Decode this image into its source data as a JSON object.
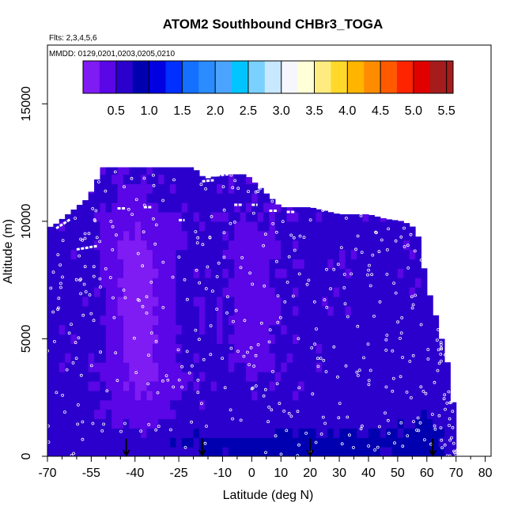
{
  "chart_data": {
    "type": "heatmap",
    "title": "ATOM2 Southbound CHBr3_TOGA",
    "flights_note": "Flts: 2,3,4,5,6",
    "dates_note": "MMDD: 0129,0201,0203,0205,0210",
    "xlabel": "Latitude (deg N)",
    "ylabel": "Altitude (m)",
    "xlim": [
      -70,
      82
    ],
    "ylim": [
      0,
      17500
    ],
    "x_ticks": [
      -70,
      -55,
      -40,
      -25,
      -10,
      0,
      10,
      20,
      30,
      40,
      50,
      60,
      70,
      80
    ],
    "x_tick_labels": [
      "-70",
      "-55",
      "-40",
      "-25",
      "-10",
      "0",
      "10",
      "20",
      "30",
      "40",
      "50",
      "60",
      "70",
      "80"
    ],
    "x_minor_ticks": [
      -65,
      -60,
      -50,
      -45,
      -35,
      -30,
      -20,
      -15,
      -5,
      5,
      15,
      25,
      35,
      45,
      55,
      65,
      75
    ],
    "y_ticks": [
      0,
      5000,
      10000,
      15000
    ],
    "y_tick_labels": [
      "0",
      "5000",
      "10000",
      "15000"
    ],
    "colorbar": {
      "min": 0,
      "max": 5.6,
      "bins": [
        0.25,
        0.5,
        0.75,
        1.0,
        1.25,
        1.5,
        1.75,
        2.0,
        2.25,
        2.5,
        2.75,
        3.0,
        3.25,
        3.5,
        3.75,
        4.0,
        4.25,
        4.5,
        4.75,
        5.0,
        5.25,
        5.6
      ],
      "colors": [
        "#7f1cf3",
        "#5a06e6",
        "#2c00cc",
        "#0000b0",
        "#0000e0",
        "#0030ff",
        "#1470ff",
        "#2a8cff",
        "#4aa4ff",
        "#00c4ff",
        "#7ad0ff",
        "#c8e8ff",
        "#f6f6ff",
        "#ffffd8",
        "#ffec80",
        "#ffd82a",
        "#ffb400",
        "#ff8c00",
        "#ff5a00",
        "#ff2400",
        "#e00000",
        "#a41c1c"
      ],
      "tick_values": [
        0.5,
        1.0,
        1.5,
        2.0,
        2.5,
        3.0,
        3.5,
        4.0,
        4.5,
        5.0,
        5.5
      ],
      "tick_labels": [
        "0.5",
        "1.0",
        "1.5",
        "2.0",
        "2.5",
        "3.0",
        "3.5",
        "4.0",
        "4.5",
        "5.0",
        "5.5"
      ]
    },
    "domain_top_altitude_m": [
      [
        -70,
        9700
      ],
      [
        -67,
        9900
      ],
      [
        -63,
        10300
      ],
      [
        -60,
        10600
      ],
      [
        -56,
        11000
      ],
      [
        -51,
        12300
      ],
      [
        -43,
        12300
      ],
      [
        -31,
        12300
      ],
      [
        -20,
        12300
      ],
      [
        -16,
        11800
      ],
      [
        -10,
        12000
      ],
      [
        -2,
        12000
      ],
      [
        4,
        11300
      ],
      [
        10,
        10600
      ],
      [
        20,
        10600
      ],
      [
        30,
        10300
      ],
      [
        40,
        10300
      ],
      [
        46,
        10100
      ],
      [
        52,
        10000
      ],
      [
        56,
        9700
      ],
      [
        58,
        9000
      ],
      [
        59,
        8000
      ],
      [
        60,
        7200
      ],
      [
        62,
        6500
      ],
      [
        65,
        5000
      ],
      [
        67,
        4000
      ],
      [
        68,
        3000
      ],
      [
        69,
        2300
      ],
      [
        70,
        1200
      ],
      [
        71,
        0
      ]
    ],
    "concentration_field": {
      "base_value": 0.55,
      "anomalies": [
        {
          "lat": -38,
          "alt": 4500,
          "d_lat": 9,
          "d_alt": 3200,
          "delta": -0.45
        },
        {
          "lat": -40,
          "alt": 8500,
          "d_lat": 9,
          "d_alt": 2200,
          "delta": -0.35
        },
        {
          "lat": 0,
          "alt": 7000,
          "d_lat": 7,
          "d_alt": 3000,
          "delta": -0.25
        },
        {
          "lat": 45,
          "alt": 3000,
          "d_lat": 9,
          "d_alt": 2500,
          "delta": 0.1
        },
        {
          "lat": 15,
          "alt": 500,
          "d_lat": 60,
          "d_alt": 900,
          "delta": 0.3
        },
        {
          "lat": 60,
          "alt": 2000,
          "d_lat": 8,
          "d_alt": 3000,
          "delta": 0.15
        }
      ]
    },
    "flight_track_segments": [
      {
        "lat": [
          -67,
          -62
        ],
        "alt": [
          9700,
          10100
        ]
      },
      {
        "lat": [
          -60,
          -53
        ],
        "alt": [
          8800,
          8950
        ]
      },
      {
        "lat": [
          -55,
          -52
        ],
        "alt": [
          12200,
          12300
        ]
      },
      {
        "lat": [
          -46,
          -43
        ],
        "alt": [
          10550,
          10550
        ]
      },
      {
        "lat": [
          -37,
          -34
        ],
        "alt": [
          10600,
          10600
        ]
      },
      {
        "lat": [
          -25,
          -23
        ],
        "alt": [
          10050,
          10050
        ]
      },
      {
        "lat": [
          -17,
          -13
        ],
        "alt": [
          11700,
          11750
        ]
      },
      {
        "lat": [
          -12,
          -8
        ],
        "alt": [
          11950,
          12000
        ]
      },
      {
        "lat": [
          -6,
          -3
        ],
        "alt": [
          10700,
          10700
        ]
      },
      {
        "lat": [
          0,
          2
        ],
        "alt": [
          10700,
          10700
        ]
      },
      {
        "lat": [
          6,
          9
        ],
        "alt": [
          10450,
          10450
        ]
      },
      {
        "lat": [
          12,
          15
        ],
        "alt": [
          10400,
          10400
        ]
      },
      {
        "lat": [
          55,
          58
        ],
        "alt": [
          10050,
          9850
        ]
      }
    ],
    "arrow_markers_latitude": [
      -43,
      -17,
      20,
      62
    ]
  }
}
